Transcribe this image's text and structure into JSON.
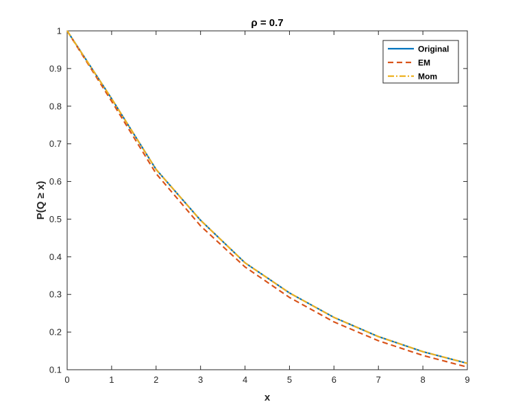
{
  "chart_data": {
    "type": "line",
    "title": "ρ = 0.7",
    "xlabel": "x",
    "ylabel": "P(Q ≥ x)",
    "xlim": [
      0,
      9
    ],
    "ylim": [
      0.1,
      1
    ],
    "xticks": [
      "0",
      "1",
      "2",
      "3",
      "4",
      "5",
      "6",
      "7",
      "8",
      "9"
    ],
    "yticks": [
      "0.1",
      "0.2",
      "0.3",
      "0.4",
      "0.5",
      "0.6",
      "0.7",
      "0.8",
      "0.9",
      "1"
    ],
    "grid": false,
    "legend_position": "top-right",
    "x": [
      0,
      1,
      2,
      3,
      4,
      5,
      6,
      7,
      8,
      9
    ],
    "series": [
      {
        "name": "Original",
        "color": "#0072BD",
        "style": "solid",
        "values": [
          1.0,
          0.82,
          0.632,
          0.497,
          0.384,
          0.304,
          0.239,
          0.188,
          0.148,
          0.117
        ]
      },
      {
        "name": "EM",
        "color": "#D95319",
        "style": "dashed",
        "values": [
          1.0,
          0.813,
          0.621,
          0.482,
          0.373,
          0.292,
          0.227,
          0.177,
          0.138,
          0.107
        ]
      },
      {
        "name": "Mom",
        "color": "#EDB120",
        "style": "dashdot",
        "values": [
          1.0,
          0.82,
          0.632,
          0.497,
          0.384,
          0.304,
          0.239,
          0.188,
          0.148,
          0.117
        ]
      }
    ]
  }
}
